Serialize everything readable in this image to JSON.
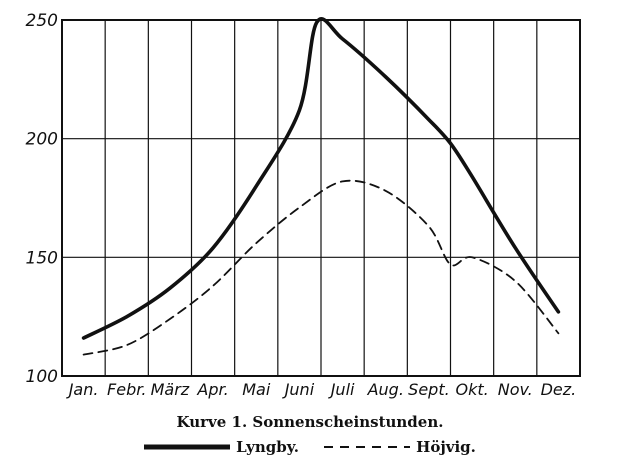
{
  "chart_data": {
    "type": "line",
    "title": "Kurve 1.   Sonnenscheinstunden.",
    "categories": [
      "Jan.",
      "Febr.",
      "März",
      "Apr.",
      "Mai",
      "Juni",
      "Juli",
      "Aug.",
      "Sept.",
      "Okt.",
      "Nov.",
      "Dez."
    ],
    "ylim": [
      100,
      250
    ],
    "yticks": [
      100,
      150,
      200,
      250
    ],
    "grid": true,
    "legend_position": "bottom",
    "series": [
      {
        "name": "Lyngby.",
        "style": "solid",
        "x": [
          0,
          1,
          2,
          3,
          4,
          5,
          5.4,
          6,
          7,
          8,
          8.5,
          9,
          10,
          11
        ],
        "values": [
          116,
          125,
          137,
          154,
          180,
          212,
          249,
          242,
          226,
          208,
          198,
          184,
          154,
          127
        ]
      },
      {
        "name": "Höjvig.",
        "style": "dashed",
        "x": [
          0,
          1,
          2,
          3,
          4,
          5,
          6,
          7,
          8,
          8.5,
          9,
          10,
          11
        ],
        "values": [
          109,
          113,
          124,
          138,
          156,
          171,
          182,
          178,
          163,
          147,
          150,
          140,
          118
        ]
      }
    ]
  }
}
